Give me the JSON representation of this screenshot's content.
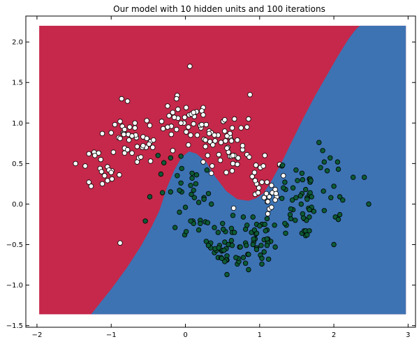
{
  "chart_data": {
    "type": "scatter",
    "title": "Our model with 10 hidden units and 100 iterations",
    "xlabel": "",
    "ylabel": "",
    "xlim": [
      -2.15,
      3.1
    ],
    "ylim": [
      -1.52,
      2.32
    ],
    "data_extent": {
      "x": [
        -1.97,
        2.97
      ],
      "y": [
        -1.36,
        2.2
      ]
    },
    "xticks": [
      -2,
      -1,
      0,
      1,
      2,
      3
    ],
    "xtick_labels": [
      "−2",
      "−1",
      "0",
      "1",
      "2",
      "3"
    ],
    "yticks": [
      -1.5,
      -1.0,
      -0.5,
      0.0,
      0.5,
      1.0,
      1.5,
      2.0
    ],
    "ytick_labels": [
      "−1.5",
      "−1.0",
      "−0.5",
      "0.0",
      "0.5",
      "1.0",
      "1.5",
      "2.0"
    ],
    "grid": false,
    "decision_regions": [
      {
        "class": 0,
        "color": "#c5284a"
      },
      {
        "class": 1,
        "color": "#3d73b3"
      }
    ],
    "decision_boundary": {
      "x": [
        -1.27,
        -1.0,
        -0.8,
        -0.6,
        -0.45,
        -0.35,
        -0.25,
        -0.15,
        -0.05,
        0.05,
        0.15,
        0.28,
        0.4,
        0.55,
        0.7,
        0.85,
        0.95,
        1.05,
        1.15,
        1.3,
        1.45,
        1.6,
        1.75,
        1.9,
        2.05,
        2.2,
        2.3,
        2.35
      ],
      "y": [
        -1.36,
        -1.05,
        -0.8,
        -0.52,
        -0.27,
        -0.08,
        0.2,
        0.42,
        0.58,
        0.65,
        0.62,
        0.52,
        0.34,
        0.16,
        0.06,
        0.04,
        0.07,
        0.13,
        0.27,
        0.52,
        0.8,
        1.08,
        1.34,
        1.58,
        1.82,
        2.04,
        2.16,
        2.2
      ]
    },
    "series": [
      {
        "color": "#ffffff",
        "x": [
          -0.52,
          -0.84,
          -0.77,
          -0.57,
          -1.0,
          -0.95,
          -0.68,
          -0.76,
          -1.35,
          -1.3,
          -1.15,
          -0.47,
          -1.05,
          -0.85,
          -0.63,
          -1.27,
          -1.17,
          -0.53,
          -0.78,
          -0.43,
          -0.44,
          -1.12,
          -0.82,
          -1.48,
          -0.9,
          -0.82,
          -1.14,
          -0.68,
          -0.47,
          -0.75,
          -1.05,
          -0.99,
          -0.82,
          -1.12,
          -0.88,
          -0.48,
          -0.83,
          -0.6,
          -0.99,
          -0.65,
          -0.89,
          -0.72,
          -0.65,
          -0.88,
          -1.03,
          -0.97,
          -0.66,
          -0.67,
          -0.58,
          -0.49,
          -1.23,
          -1.09,
          -1.22,
          -0.86,
          -0.72,
          -0.52,
          -0.83,
          -1.3,
          -1.0,
          -0.57,
          -1.13,
          -0.78,
          -0.22,
          0.05,
          -0.3,
          -0.1,
          0.15,
          -0.19,
          0.01,
          -0.32,
          0.12,
          0.16,
          -0.1,
          0.21,
          -0.02,
          -0.19,
          -0.12,
          0.08,
          0.07,
          -0.01,
          -0.06,
          -0.24,
          0.11,
          0.2,
          -0.24,
          -0.15,
          0.04,
          -0.17,
          0.11,
          0.24,
          -0.11,
          -0.17,
          0.04,
          0.01,
          0.55,
          0.32,
          0.35,
          0.28,
          0.66,
          0.7,
          0.51,
          0.24,
          0.44,
          0.83,
          0.27,
          0.22,
          0.57,
          0.53,
          0.85,
          0.75,
          0.6,
          0.33,
          0.22,
          0.6,
          0.83,
          0.62,
          0.45,
          0.7,
          0.62,
          0.53,
          0.6,
          0.24,
          0.32,
          0.48,
          0.86,
          0.63,
          0.25,
          0.36,
          0.54,
          0.77,
          0.71,
          0.4,
          0.56,
          0.27,
          0.66,
          0.37,
          0.64,
          0.62,
          0.64,
          0.3,
          0.7,
          0.58,
          0.77,
          0.63,
          0.35,
          0.39,
          0.56,
          0.47,
          1.06,
          1.11,
          1.07,
          1.27,
          0.94,
          1.01,
          1.13,
          0.93,
          1.03,
          0.98,
          1.05,
          0.9,
          1.17,
          1.13,
          1.23,
          0.96,
          1.1,
          1.27,
          1.21,
          1.16,
          0.94,
          1.21,
          1.11,
          1.09,
          0.99,
          1.1
        ],
        "y": [
          1.03,
          0.88,
          0.86,
          0.83,
          0.88,
          0.98,
          1.0,
          0.79,
          0.47,
          0.62,
          0.44,
          0.77,
          0.46,
          0.96,
          0.57,
          0.22,
          0.63,
          0.7,
          1.27,
          0.79,
          0.7,
          0.87,
          0.63,
          0.5,
          0.82,
          0.92,
          0.55,
          0.94,
          0.53,
          0.95,
          0.29,
          0.31,
          0.69,
          0.25,
          0.81,
          0.97,
          0.87,
          0.58,
          0.41,
          0.71,
          0.36,
          0.63,
          0.52,
          1.02,
          0.42,
          0.64,
          0.82,
          0.85,
          0.7,
          0.74,
          0.64,
          0.35,
          0.6,
          1.3,
          0.84,
          0.81,
          0.86,
          0.27,
          0.39,
          0.72,
          0.4,
          0.67,
          1.09,
          1.1,
          0.93,
          1.06,
          1.14,
          0.86,
          1.19,
          1.02,
          1.08,
          0.85,
          1.17,
          0.94,
          1.0,
          0.96,
          0.92,
          1.11,
          0.85,
          1.07,
          1.0,
          1.21,
          1.13,
          0.97,
          0.95,
          1.07,
          0.73,
          0.66,
          0.99,
          1.19,
          1.34,
          1.13,
          0.95,
          0.89,
          0.39,
          0.9,
          0.88,
          0.98,
          1.05,
          0.57,
          1.02,
          0.52,
          0.85,
          0.95,
          0.71,
          0.98,
          0.7,
          0.9,
          1.05,
          0.94,
          0.59,
          0.77,
          1.15,
          0.83,
          0.61,
          0.79,
          0.61,
          0.79,
          0.78,
          1.04,
          0.87,
          1.1,
          0.87,
          0.76,
          0.58,
          0.94,
          0.8,
          0.47,
          0.78,
          0.67,
          0.57,
          0.78,
          0.84,
          0.79,
          0.6,
          0.73,
          0.5,
          0.59,
          0.6,
          0.6,
          0.49,
          0.64,
          0.72,
          0.41,
          0.38,
          0.85,
          0.69,
          0.54,
          0.08,
          -0.12,
          0.6,
          0.48,
          0.12,
          0.45,
          0.09,
          0.39,
          0.27,
          0.14,
          0.47,
          0.34,
          0.14,
          -0.06,
          0.09,
          0.25,
          0.03,
          0.49,
          0.05,
          0.23,
          0.29,
          0.18,
          0.03,
          0.13,
          0.2,
          0.27
        ]
      },
      {
        "color": "#0d5a36",
        "x": [
          -0.2,
          -0.08,
          -0.2,
          -0.14,
          -0.06,
          -0.05,
          -0.11,
          -0.05,
          -0.08,
          -0.01,
          0.1,
          0.18,
          0.18,
          0.12,
          0.0,
          0.01,
          0.25,
          0.34,
          0.2,
          0.11,
          0.11,
          0.15,
          0.27,
          0.07,
          0.31,
          0.07,
          0.35,
          0.09,
          0.31,
          0.39,
          0.3,
          0.39,
          0.34,
          0.2,
          0.14,
          0.31,
          0.08,
          0.42,
          0.29,
          0.09,
          0.25,
          0.4,
          0.84,
          0.62,
          0.56,
          0.85,
          0.44,
          0.78,
          0.5,
          0.48,
          0.63,
          0.56,
          0.54,
          0.46,
          0.45,
          0.53,
          0.78,
          0.62,
          0.49,
          0.85,
          0.55,
          0.73,
          0.5,
          0.81,
          0.7,
          0.58,
          0.81,
          0.66,
          0.51,
          0.74,
          0.81,
          0.72,
          0.64,
          0.63,
          0.82,
          0.44,
          0.55,
          0.83,
          0.53,
          0.71,
          0.68,
          0.49,
          0.52,
          1.03,
          1.1,
          1.03,
          1.15,
          0.95,
          0.92,
          1.1,
          1.11,
          0.91,
          1.06,
          0.91,
          1.12,
          1.11,
          1.01,
          1.02,
          1.2,
          0.94,
          1.06,
          1.03,
          0.89,
          1.1,
          0.96,
          0.96,
          0.96,
          1.1,
          0.93,
          1.21,
          1.07,
          1.08,
          1.0,
          0.92,
          1.64,
          1.67,
          1.35,
          1.45,
          1.49,
          1.62,
          1.7,
          1.57,
          1.3,
          1.6,
          1.44,
          1.68,
          1.6,
          1.67,
          1.62,
          1.67,
          1.3,
          1.63,
          1.67,
          1.57,
          1.35,
          1.34,
          1.32,
          1.68,
          1.62,
          1.45,
          1.64,
          1.42,
          1.66,
          1.36,
          1.42,
          1.31,
          1.57,
          1.34,
          1.56,
          1.7,
          1.59,
          1.73,
          1.58,
          1.41,
          1.55,
          1.7,
          1.64,
          1.49,
          1.48,
          1.67,
          1.58,
          1.68,
          1.51,
          1.69,
          2.05,
          2.02,
          2.0,
          1.87,
          2.06,
          2.41,
          1.86,
          2.26,
          2.08,
          2.12,
          2.06,
          1.96,
          2.08,
          2.47,
          1.87,
          1.82,
          1.95,
          1.91
        ],
        "y": [
          0.57,
          -0.1,
          0.15,
          -0.29,
          0.26,
          0.15,
          0.35,
          0.44,
          0.17,
          -0.38,
          -0.21,
          -0.32,
          0.02,
          0.08,
          -0.04,
          -0.34,
          0.08,
          -0.48,
          -0.2,
          -0.24,
          0.17,
          0.36,
          -0.22,
          0.23,
          0.13,
          -0.21,
          0.0,
          0.32,
          -0.51,
          -0.6,
          -0.23,
          -0.29,
          -0.54,
          -0.24,
          0.25,
          -0.51,
          0.12,
          -0.57,
          0.42,
          0.38,
          0.06,
          -0.55,
          -0.62,
          -0.45,
          -0.64,
          -0.62,
          -0.66,
          -0.16,
          -0.24,
          -0.66,
          -0.35,
          -0.69,
          -0.34,
          -0.51,
          -0.54,
          -0.47,
          -0.66,
          -0.3,
          -0.58,
          -0.81,
          -0.55,
          -0.53,
          -0.57,
          -0.73,
          -0.74,
          -0.5,
          -0.48,
          -0.35,
          -0.31,
          -0.53,
          -0.31,
          -0.71,
          -0.14,
          -0.51,
          -0.51,
          -0.35,
          -0.69,
          -0.26,
          -0.71,
          -0.67,
          -0.66,
          -0.67,
          -0.57,
          -0.25,
          -0.32,
          -0.74,
          -0.46,
          -0.37,
          -0.47,
          -0.18,
          -0.43,
          -0.5,
          -0.59,
          -0.16,
          -0.68,
          -0.48,
          -0.63,
          -0.51,
          -0.26,
          -0.43,
          -0.44,
          -0.67,
          -0.35,
          -0.51,
          -0.25,
          -0.36,
          -0.54,
          -0.43,
          -0.32,
          -0.53,
          -0.25,
          -0.33,
          -0.27,
          -0.43,
          0.08,
          0.12,
          0.18,
          0.2,
          0.42,
          0.18,
          -0.07,
          -0.36,
          0.07,
          -0.33,
          0.05,
          0.14,
          -0.18,
          0.31,
          -0.33,
          -0.16,
          0.47,
          -0.2,
          -0.33,
          0.38,
          -0.36,
          0.27,
          0.2,
          0.27,
          -0.39,
          -0.07,
          -0.38,
          -0.18,
          -0.05,
          -0.26,
          -0.06,
          0.48,
          0.13,
          -0.24,
          0.0,
          0.09,
          -0.17,
          -0.09,
          0.3,
          -0.13,
          0.1,
          -0.04,
          0.06,
          0.08,
          -0.2,
          -0.07,
          -0.12,
          0.31,
          0.29,
          0.29,
          0.52,
          -0.16,
          0.22,
          0.52,
          -0.19,
          0.33,
          0.16,
          0.33,
          0.09,
          0.05,
          0.43,
          0.08,
          -0.13,
          0.0,
          -0.08,
          0.45,
          0.57,
          0.41
        ]
      },
      {
        "color": "#ffffff",
        "x": [
          -0.88,
          -0.12,
          0.06,
          0.87,
          0.95,
          1.22,
          0.65,
          1.16,
          1.32
        ],
        "y": [
          -0.48,
          1.3,
          1.7,
          1.35,
          0.48,
          0.13,
          -0.05,
          -0.04,
          0.35
        ]
      },
      {
        "color": "#0d5a36",
        "x": [
          -0.37,
          0.96,
          -0.48,
          -0.31,
          -0.06,
          -0.33,
          -0.54,
          -0.29,
          0.56,
          0.28,
          1.8,
          1.85,
          2.0
        ],
        "y": [
          0.6,
          -0.56,
          0.09,
          0.14,
          0.59,
          0.37,
          -0.21,
          0.51,
          -0.87,
          -0.46,
          0.76,
          0.66,
          -0.5
        ]
      }
    ]
  }
}
